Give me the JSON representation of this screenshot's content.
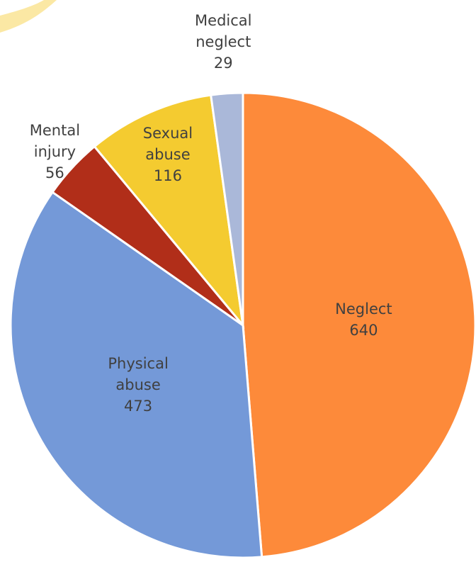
{
  "chart_data": {
    "type": "pie",
    "categories": [
      "Neglect",
      "Physical abuse",
      "Mental injury",
      "Sexual abuse",
      "Medical neglect"
    ],
    "values": [
      640,
      473,
      56,
      116,
      29
    ],
    "colors": [
      "#fd8a3a",
      "#7499d8",
      "#b12e19",
      "#f4cb30",
      "#aab8d9"
    ]
  }
}
